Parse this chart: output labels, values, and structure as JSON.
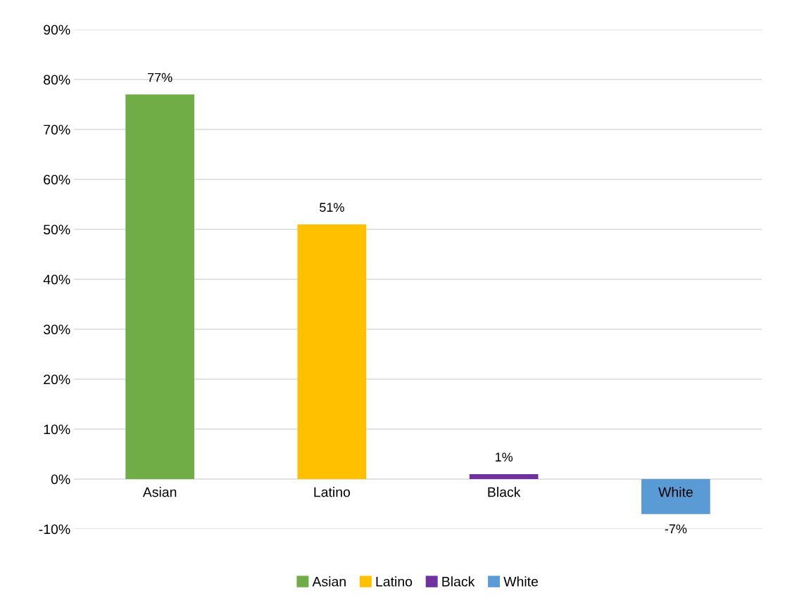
{
  "chart_data": {
    "type": "bar",
    "categories": [
      "Asian",
      "Latino",
      "Black",
      "White"
    ],
    "series": [
      {
        "name": "Asian",
        "color": "#70ad47",
        "values": [
          77,
          null,
          null,
          null
        ],
        "value_labels": [
          "77%",
          null,
          null,
          null
        ]
      },
      {
        "name": "Latino",
        "color": "#ffc000",
        "values": [
          null,
          51,
          null,
          null
        ],
        "value_labels": [
          null,
          "51%",
          null,
          null
        ]
      },
      {
        "name": "Black",
        "color": "#7030a0",
        "values": [
          null,
          null,
          1,
          null
        ],
        "value_labels": [
          null,
          null,
          "1%",
          null
        ]
      },
      {
        "name": "White",
        "color": "#5b9bd5",
        "values": [
          null,
          null,
          null,
          -7
        ],
        "value_labels": [
          null,
          null,
          null,
          "-7%"
        ]
      }
    ],
    "ylim": [
      -10,
      90
    ],
    "yticks": [
      {
        "value": -10,
        "label": "-10%"
      },
      {
        "value": 0,
        "label": "0%"
      },
      {
        "value": 10,
        "label": "10%"
      },
      {
        "value": 20,
        "label": "20%"
      },
      {
        "value": 30,
        "label": "30%"
      },
      {
        "value": 40,
        "label": "40%"
      },
      {
        "value": 50,
        "label": "50%"
      },
      {
        "value": 60,
        "label": "60%"
      },
      {
        "value": 70,
        "label": "70%"
      },
      {
        "value": 80,
        "label": "80%"
      },
      {
        "value": 90,
        "label": "90%"
      }
    ],
    "grid": "y",
    "legend": "bottom"
  }
}
